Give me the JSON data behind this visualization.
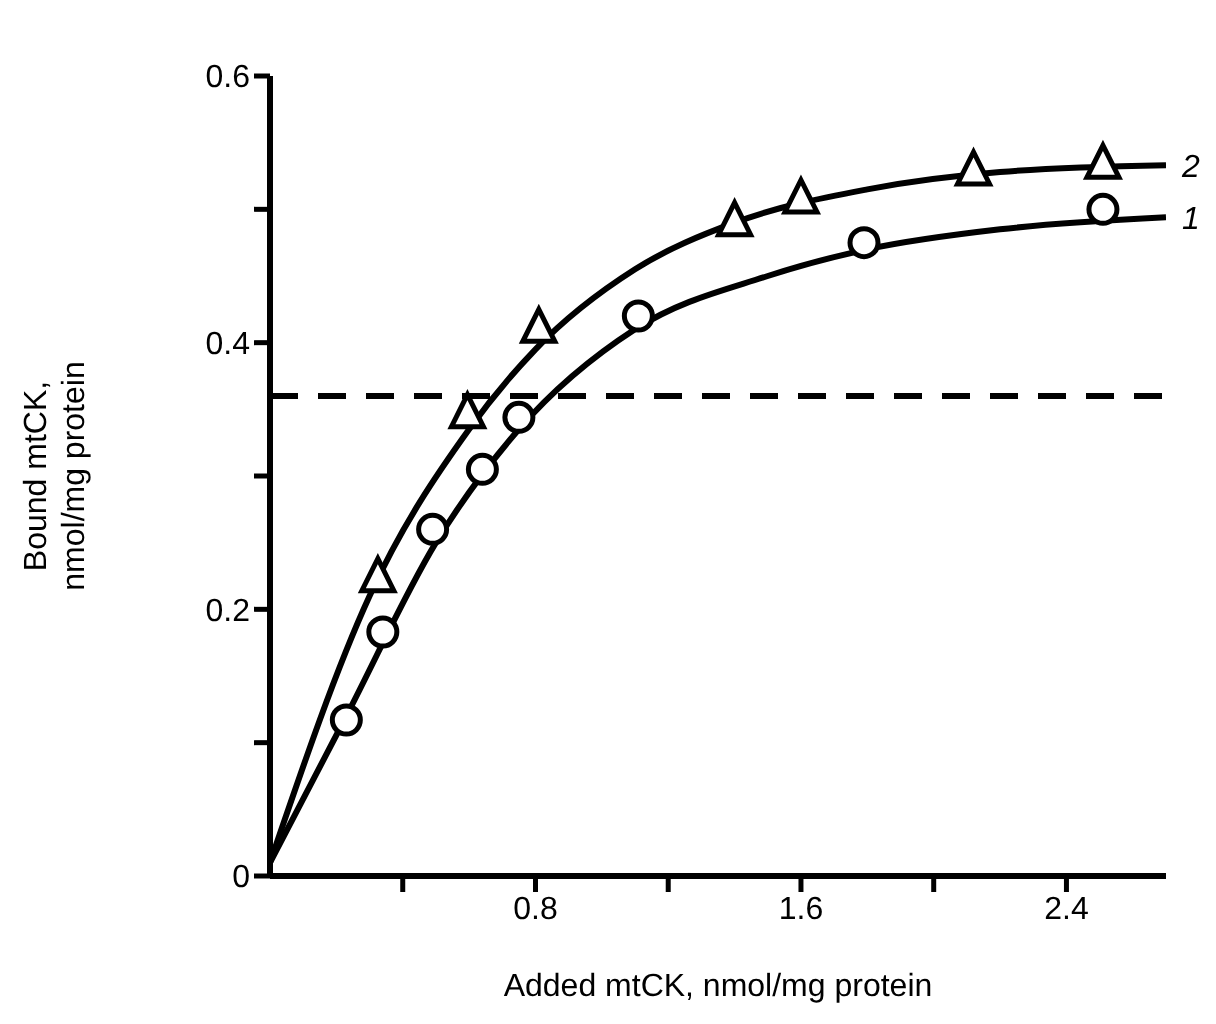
{
  "chart_data": {
    "type": "line",
    "xlabel": "Added mtCK, nmol/mg protein",
    "ylabel": "Bound mtCK, nmol/mg protein",
    "xlim": [
      0,
      2.7
    ],
    "ylim": [
      0,
      0.6
    ],
    "xticks": [
      {
        "value": 0.4,
        "label": null
      },
      0.8,
      {
        "value": 1.2,
        "label": null
      },
      1.6,
      {
        "value": 2.0,
        "label": null
      },
      2.4
    ],
    "yticks": [
      0,
      {
        "value": 0.1,
        "label": null
      },
      0.2,
      {
        "value": 0.3,
        "label": null
      },
      0.4,
      {
        "value": 0.5,
        "label": null
      },
      0.6
    ],
    "grid": false,
    "legend": false,
    "line_style": "solid",
    "ref_lines": [
      {
        "axis": "y",
        "value": 0.36,
        "line_style": "dashed",
        "color": "#000000"
      }
    ],
    "series": [
      {
        "name": "1",
        "color": "#000000",
        "marker": "none",
        "x": [
          0,
          0.23,
          0.5,
          0.75,
          1.1,
          1.5,
          1.8,
          2.2,
          2.7
        ],
        "values": [
          0.01,
          0.12,
          0.25,
          0.335,
          0.41,
          0.45,
          0.47,
          0.485,
          0.494
        ]
      },
      {
        "name": "2",
        "color": "#000000",
        "marker": "none",
        "x": [
          0,
          0.3,
          0.6,
          0.8,
          1.1,
          1.4,
          1.8,
          2.2,
          2.7
        ],
        "values": [
          0.01,
          0.21,
          0.335,
          0.395,
          0.455,
          0.49,
          0.515,
          0.528,
          0.533
        ]
      },
      {
        "type": "scatter",
        "color": "#000000",
        "marker": "circle",
        "x": [
          0.23,
          0.34,
          0.49,
          0.64,
          0.75,
          1.11,
          1.79,
          2.51
        ],
        "values": [
          0.117,
          0.183,
          0.26,
          0.305,
          0.344,
          0.42,
          0.475,
          0.5
        ]
      },
      {
        "type": "scatter",
        "color": "#000000",
        "marker": "triangle",
        "x": [
          0.325,
          0.595,
          0.81,
          1.4,
          1.6,
          2.12,
          2.51
        ],
        "values": [
          0.223,
          0.346,
          0.41,
          0.49,
          0.507,
          0.528,
          0.533
        ]
      }
    ]
  }
}
